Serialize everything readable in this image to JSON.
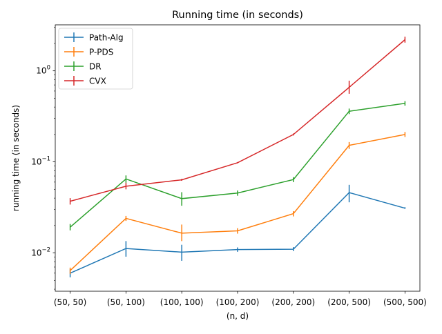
{
  "chart_data": {
    "type": "line",
    "title": "Running time (in seconds)",
    "xlabel": "(n, d)",
    "ylabel": "running time (in seconds)",
    "categories": [
      "(50, 50)",
      "(50, 100)",
      "(100, 100)",
      "(100, 200)",
      "(200, 200)",
      "(200, 500)",
      "(500, 500)"
    ],
    "y_scale": "log",
    "ylim": [
      0.0038,
      3.2
    ],
    "y_ticks": [
      {
        "value": 0.01,
        "base": "10",
        "exp": "−2"
      },
      {
        "value": 0.1,
        "base": "10",
        "exp": "−1"
      },
      {
        "value": 1,
        "base": "10",
        "exp": "0"
      }
    ],
    "grid": false,
    "legend_position": "top-left",
    "series": [
      {
        "name": "Path-Alg",
        "color": "#1f77b4",
        "values": [
          0.006,
          0.0112,
          0.0102,
          0.0109,
          0.011,
          0.046,
          0.031
        ],
        "err_low": [
          0.0054,
          0.0091,
          0.0082,
          0.0103,
          0.0105,
          0.036,
          0.0305
        ],
        "err_high": [
          0.0066,
          0.0135,
          0.0123,
          0.0115,
          0.0116,
          0.056,
          0.0318
        ]
      },
      {
        "name": "P-PDS",
        "color": "#ff7f0e",
        "values": [
          0.0064,
          0.024,
          0.0165,
          0.0175,
          0.027,
          0.152,
          0.2
        ],
        "err_low": [
          0.0059,
          0.0225,
          0.0135,
          0.0163,
          0.0252,
          0.139,
          0.188
        ],
        "err_high": [
          0.0069,
          0.0255,
          0.0205,
          0.0187,
          0.0288,
          0.165,
          0.213
        ]
      },
      {
        "name": "DR",
        "color": "#2ca02c",
        "values": [
          0.0192,
          0.065,
          0.0395,
          0.0455,
          0.064,
          0.36,
          0.44
        ],
        "err_low": [
          0.0177,
          0.059,
          0.033,
          0.0425,
          0.06,
          0.335,
          0.415
        ],
        "err_high": [
          0.0208,
          0.071,
          0.0465,
          0.0485,
          0.068,
          0.385,
          0.465
        ]
      },
      {
        "name": "CVX",
        "color": "#d62728",
        "values": [
          0.037,
          0.054,
          0.0635,
          0.098,
          0.2,
          0.66,
          2.2
        ],
        "err_low": [
          0.034,
          0.05,
          0.062,
          0.0965,
          0.195,
          0.56,
          2.04
        ],
        "err_high": [
          0.04,
          0.059,
          0.0652,
          0.0995,
          0.205,
          0.78,
          2.37
        ]
      }
    ]
  }
}
